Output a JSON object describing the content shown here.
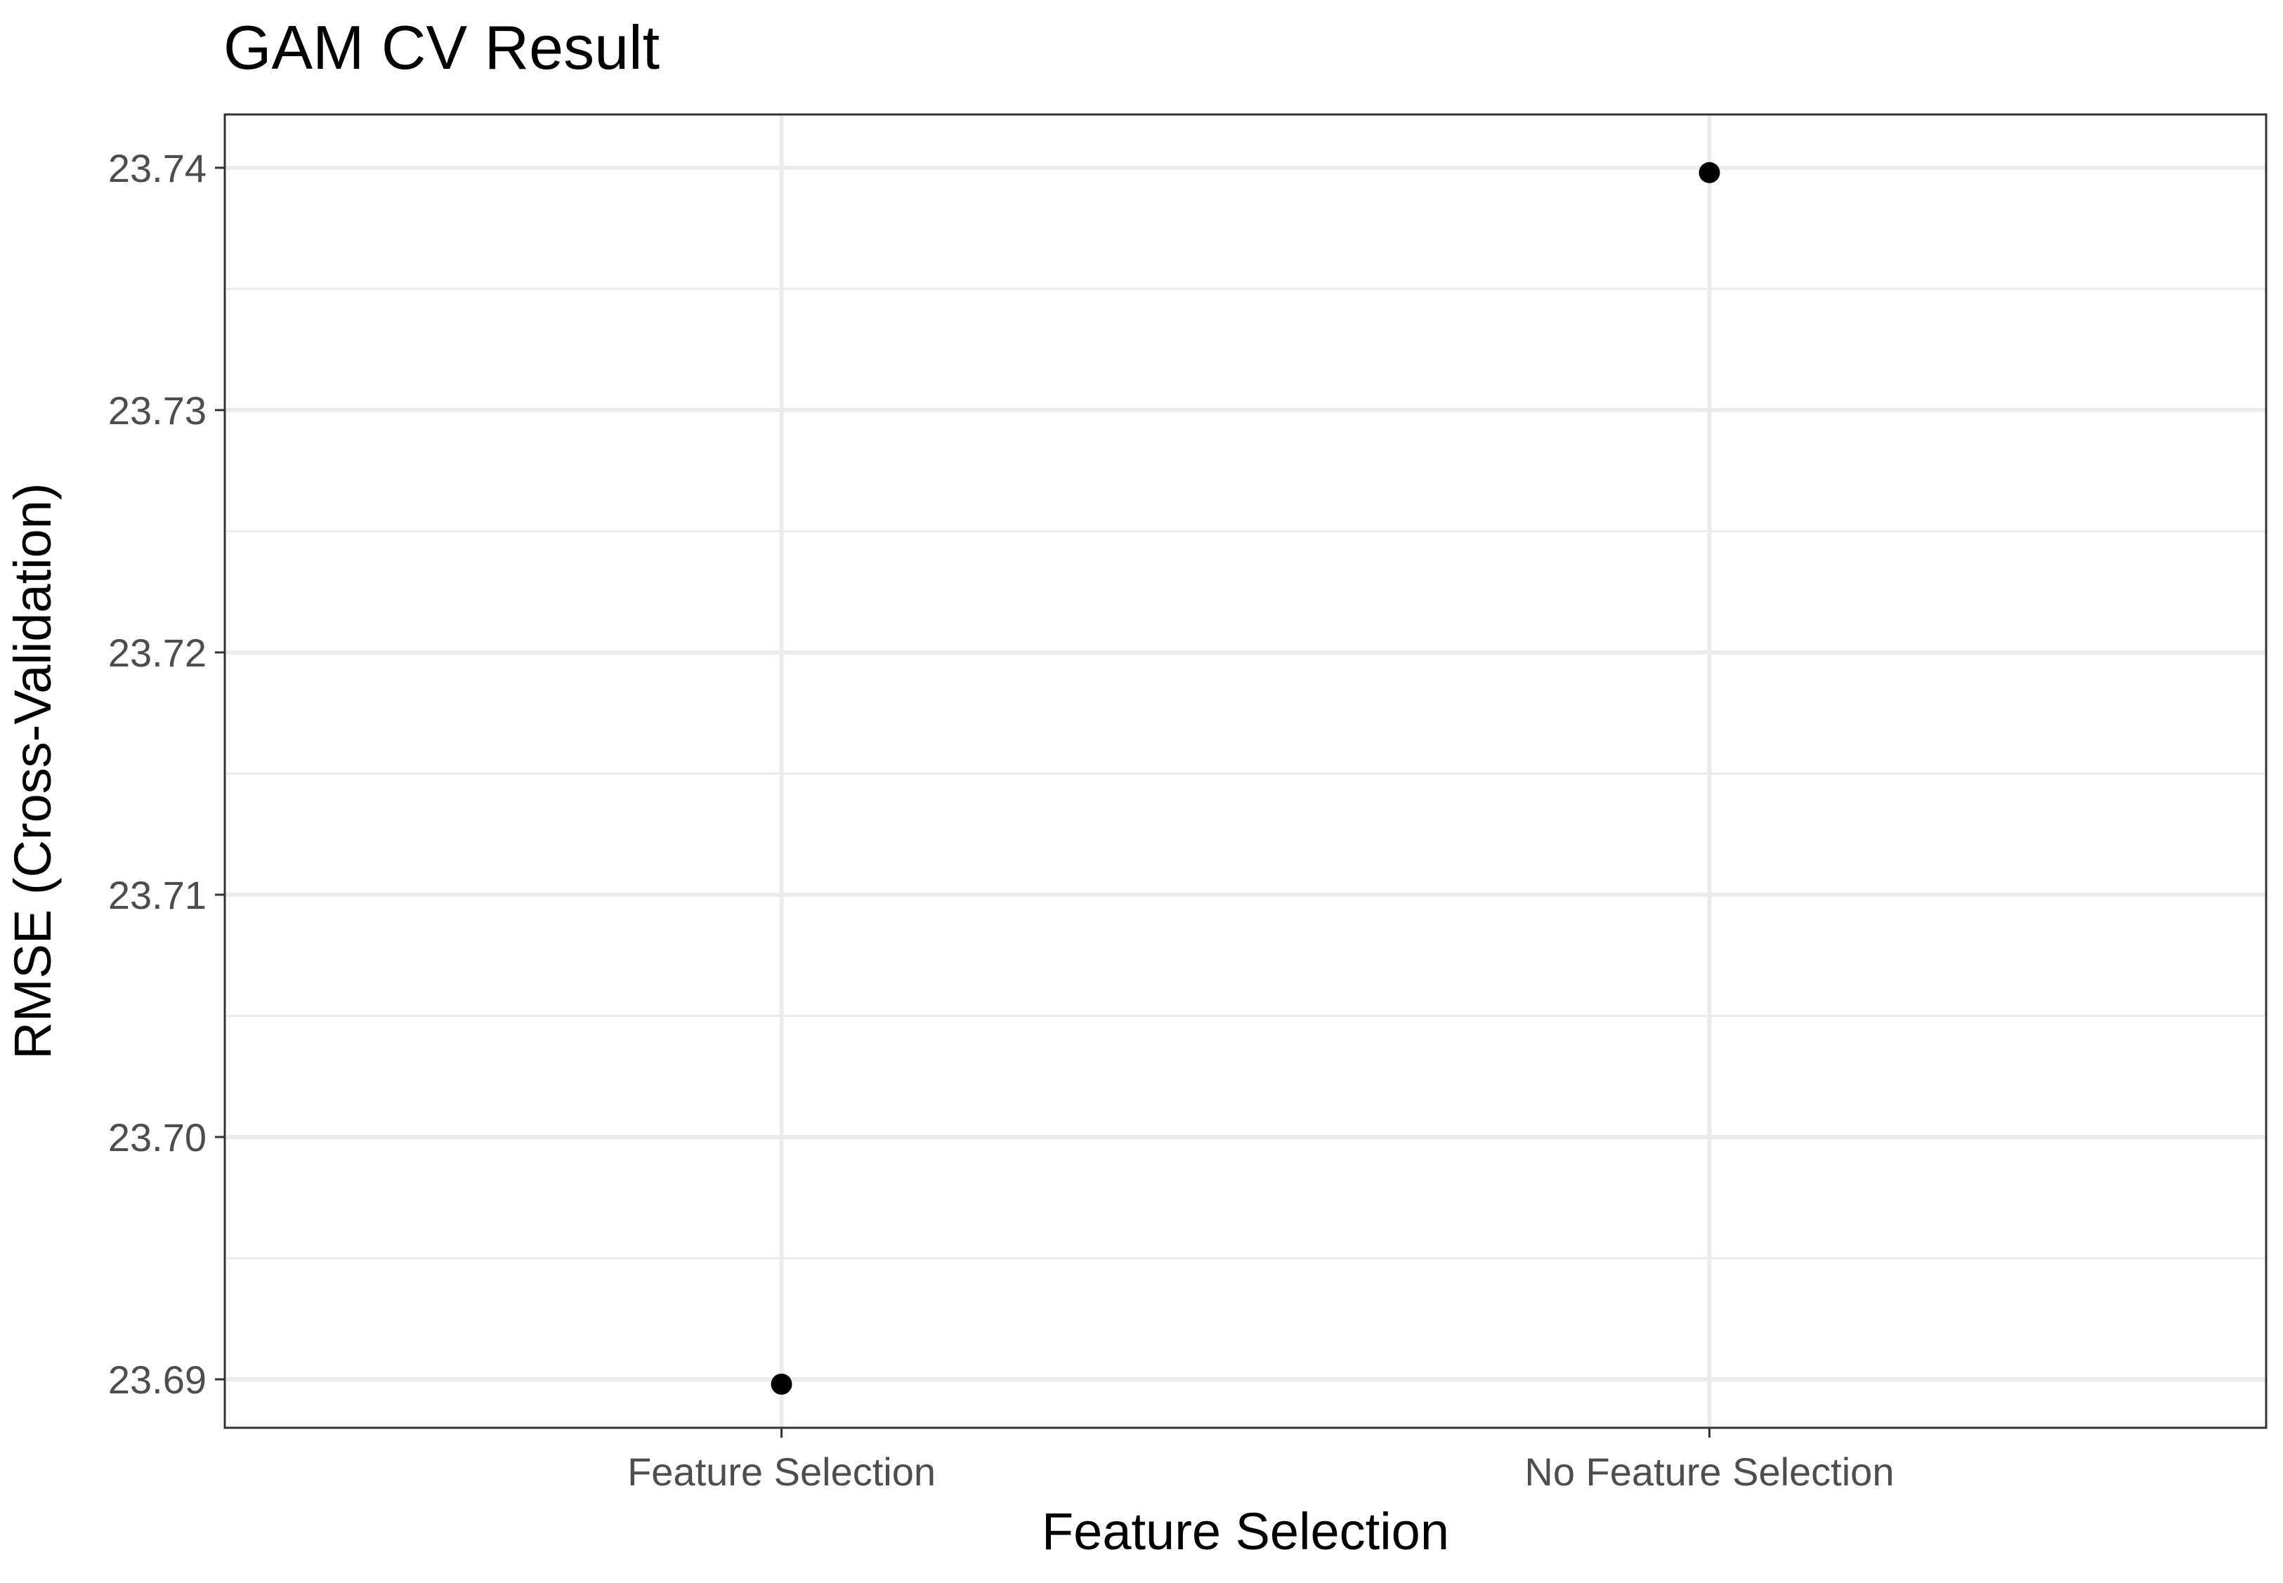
{
  "chart_data": {
    "type": "scatter",
    "title": "GAM CV Result",
    "xlabel": "Feature Selection",
    "ylabel": "RMSE (Cross-Validation)",
    "categories": [
      "Feature Selection",
      "No Feature Selection"
    ],
    "values": [
      23.6898,
      23.7398
    ],
    "ylim": [
      23.688,
      23.7422
    ],
    "yticks": [
      23.69,
      23.7,
      23.71,
      23.72,
      23.73,
      23.74
    ],
    "ytick_labels": [
      "23.69",
      "23.70",
      "23.71",
      "23.72",
      "23.73",
      "23.74"
    ],
    "grid": true,
    "legend": "none",
    "point_color": "#000000",
    "grid_color": "#ebebeb",
    "border_color": "#333333",
    "tick_label_color": "#4d4d4d"
  }
}
